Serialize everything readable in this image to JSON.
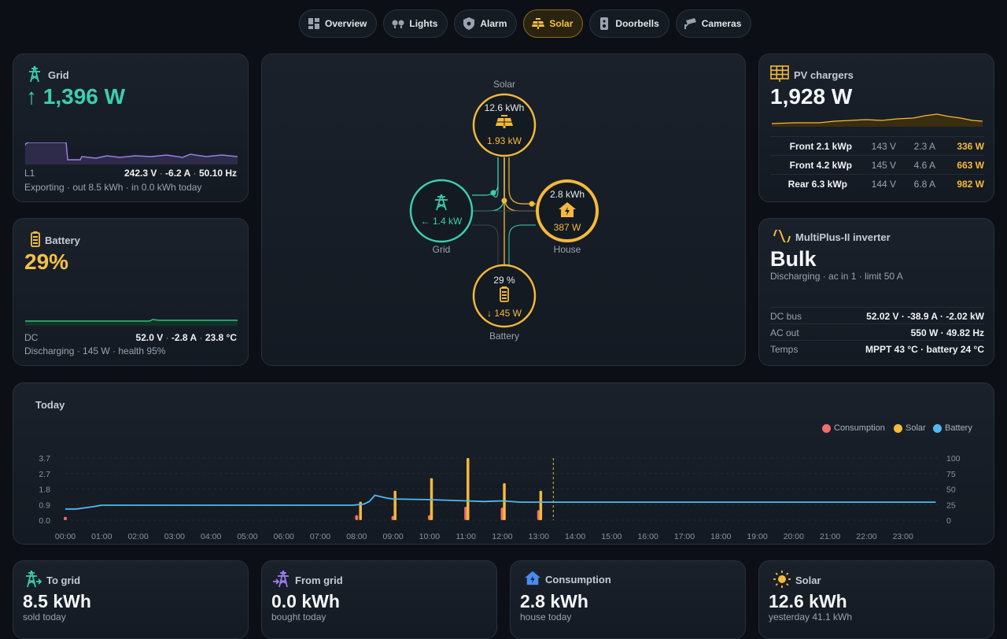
{
  "nav": [
    {
      "label": "Overview",
      "icon": "dashboard-icon",
      "active": false
    },
    {
      "label": "Lights",
      "icon": "bulbs-icon",
      "active": false
    },
    {
      "label": "Alarm",
      "icon": "shield-icon",
      "active": false
    },
    {
      "label": "Solar",
      "icon": "solar-panel-icon",
      "active": true
    },
    {
      "label": "Doorbells",
      "icon": "doorbell-icon",
      "active": false
    },
    {
      "label": "Cameras",
      "icon": "cctv-icon",
      "active": false
    }
  ],
  "grid": {
    "title": "Grid",
    "power": "1,396 W",
    "arrow": "↑",
    "phase": "L1",
    "voltage": "242.3 V",
    "current": "-6.2 A",
    "frequency": "50.10 Hz",
    "sep": "·",
    "summary": "Exporting · out 8.5 kWh · in 0.0 kWh today"
  },
  "battery": {
    "title": "Battery",
    "soc": "29%",
    "label": "DC",
    "voltage": "52.0 V",
    "current": "-2.8 A",
    "temperature": "23.8 °C",
    "sep": "·",
    "summary": "Discharging · 145 W · health 95%"
  },
  "flow": {
    "solar": {
      "label": "Solar",
      "energy": "12.6 kWh",
      "power": "1.93 kW"
    },
    "grid": {
      "label": "Grid",
      "power": "← 1.4 kW"
    },
    "house": {
      "label": "House",
      "energy": "2.8 kWh",
      "power": "387 W"
    },
    "battery": {
      "label": "Battery",
      "soc": "29 %",
      "power": "↓ 145 W"
    }
  },
  "pv": {
    "title": "PV chargers",
    "power": "1,928 W",
    "chargers": [
      {
        "name": "Front 2.1 kWp",
        "voltage": "143 V",
        "current": "2.3 A",
        "power": "336 W"
      },
      {
        "name": "Front 4.2 kWp",
        "voltage": "145 V",
        "current": "4.6 A",
        "power": "663 W"
      },
      {
        "name": "Rear 6.3 kWp",
        "voltage": "144 V",
        "current": "6.8 A",
        "power": "982 W"
      }
    ]
  },
  "inverter": {
    "title": "MultiPlus-II inverter",
    "state": "Bulk",
    "summary": "Discharging · ac in 1 · limit 50 A",
    "rows": [
      {
        "key": "DC bus",
        "value": "52.02 V · -38.9 A · -2.02 kW"
      },
      {
        "key": "AC out",
        "value": "550 W · 49.82 Hz"
      },
      {
        "key": "Temps",
        "value": "MPPT 43 °C · battery 24 °C"
      }
    ]
  },
  "chart_data": {
    "type": "bar",
    "title": "Today",
    "legend": [
      "Consumption",
      "Solar",
      "Battery"
    ],
    "legend_position": "top-right",
    "x_ticks": [
      "00:00",
      "01:00",
      "02:00",
      "03:00",
      "04:00",
      "05:00",
      "06:00",
      "07:00",
      "08:00",
      "09:00",
      "10:00",
      "11:00",
      "12:00",
      "13:00",
      "14:00",
      "15:00",
      "16:00",
      "17:00",
      "18:00",
      "19:00",
      "20:00",
      "21:00",
      "22:00",
      "23:00"
    ],
    "y_left_ticks": [
      "0.0",
      "0.9",
      "1.8",
      "2.7",
      "3.7"
    ],
    "y_right_ticks": [
      "0",
      "25",
      "50",
      "75",
      "100"
    ],
    "ylim_left": [
      0,
      3.7
    ],
    "ylim_right": [
      0,
      100
    ],
    "now_hour": 13.4,
    "series": [
      {
        "name": "Consumption",
        "color": "#f26d6d",
        "axis": "left",
        "points": [
          [
            0,
            0.2
          ],
          [
            8,
            0.3
          ],
          [
            9,
            0.25
          ],
          [
            10,
            0.3
          ],
          [
            11,
            0.8
          ],
          [
            12,
            0.75
          ],
          [
            13,
            0.6
          ]
        ]
      },
      {
        "name": "Solar",
        "color": "#f5b93b",
        "axis": "left",
        "points": [
          [
            8.1,
            1.1
          ],
          [
            9.05,
            1.75
          ],
          [
            10.05,
            2.5
          ],
          [
            11.05,
            3.7
          ],
          [
            12.05,
            2.2
          ],
          [
            13.05,
            1.75
          ]
        ]
      },
      {
        "name": "Battery",
        "color": "#52b8f0",
        "axis": "right",
        "points": [
          [
            0,
            18
          ],
          [
            0.3,
            18
          ],
          [
            0.8,
            22
          ],
          [
            1,
            24
          ],
          [
            7,
            24
          ],
          [
            7.9,
            24
          ],
          [
            8.2,
            26
          ],
          [
            8.35,
            30
          ],
          [
            8.5,
            40
          ],
          [
            8.8,
            36
          ],
          [
            9,
            34
          ],
          [
            10,
            33
          ],
          [
            11,
            31
          ],
          [
            11.5,
            30
          ],
          [
            12,
            31
          ],
          [
            12.5,
            29
          ],
          [
            13.4,
            29
          ],
          [
            23.9,
            29
          ]
        ]
      }
    ]
  },
  "stats": [
    {
      "title": "To grid",
      "value": "8.5 kWh",
      "sub": "sold today"
    },
    {
      "title": "From grid",
      "value": "0.0 kWh",
      "sub": "bought today"
    },
    {
      "title": "Consumption",
      "value": "2.8 kWh",
      "sub": "house today"
    },
    {
      "title": "Solar",
      "value": "12.6 kWh",
      "sub": "yesterday 41.1 kWh"
    }
  ]
}
